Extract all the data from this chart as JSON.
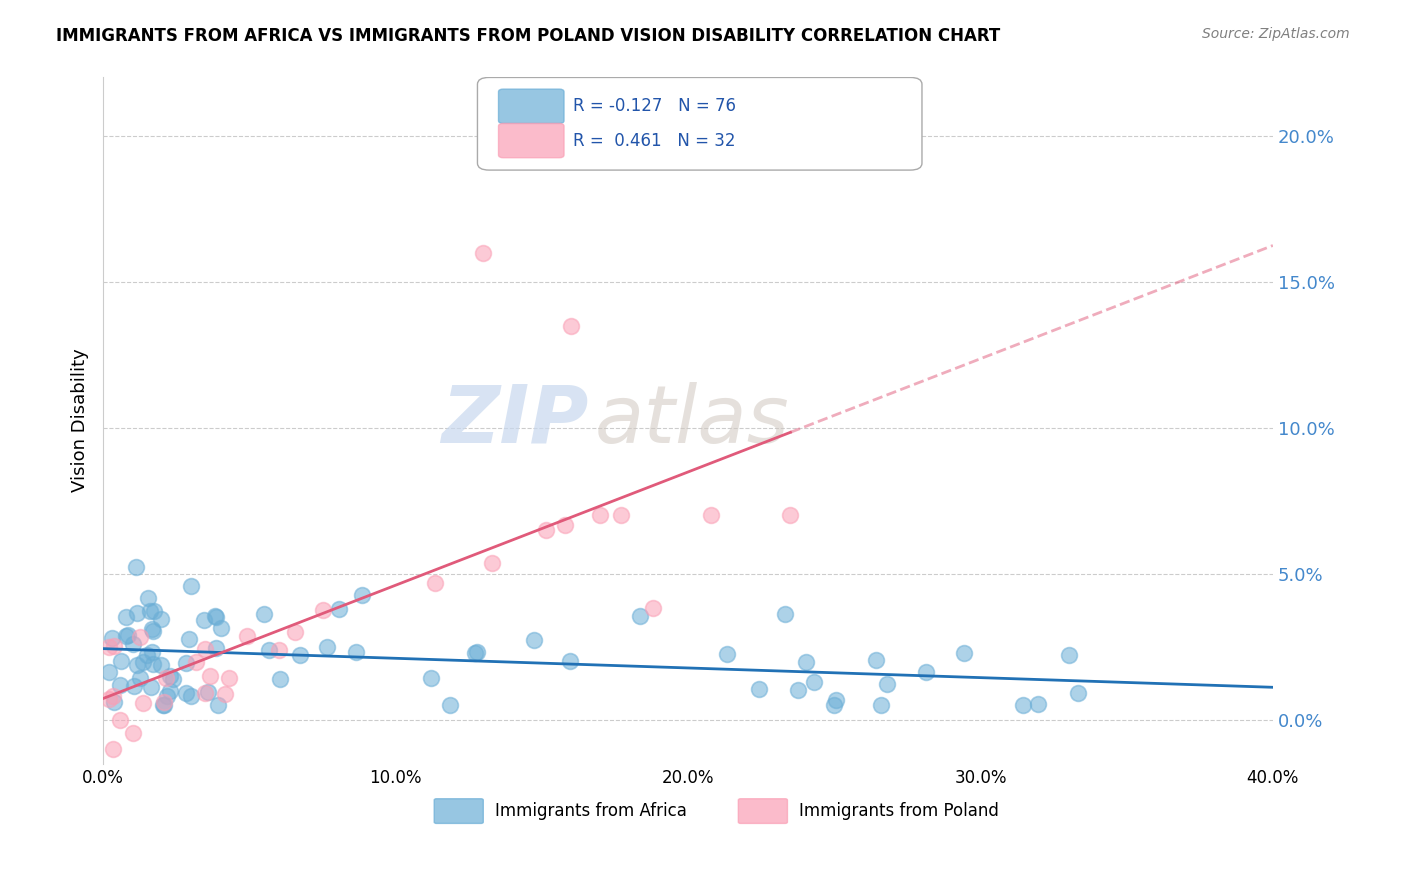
{
  "title": "IMMIGRANTS FROM AFRICA VS IMMIGRANTS FROM POLAND VISION DISABILITY CORRELATION CHART",
  "source": "Source: ZipAtlas.com",
  "ylabel": "Vision Disability",
  "xlim": [
    0.0,
    0.4
  ],
  "ylim": [
    -0.015,
    0.22
  ],
  "yticks": [
    0.0,
    0.05,
    0.1,
    0.15,
    0.2
  ],
  "xticks": [
    0.0,
    0.1,
    0.2,
    0.3,
    0.4
  ],
  "xtick_labels": [
    "0.0%",
    "10.0%",
    "20.0%",
    "30.0%",
    "40.0%"
  ],
  "legend1_label": "Immigrants from Africa",
  "legend2_label": "Immigrants from Poland",
  "R1": -0.127,
  "N1": 76,
  "R2": 0.461,
  "N2": 32,
  "color_africa": "#6baed6",
  "color_poland": "#fa9fb5",
  "color_line_africa": "#2171b5",
  "color_line_poland": "#e05a7a",
  "watermark_zip": "ZIP",
  "watermark_atlas": "atlas",
  "grid_color": "#cccccc"
}
